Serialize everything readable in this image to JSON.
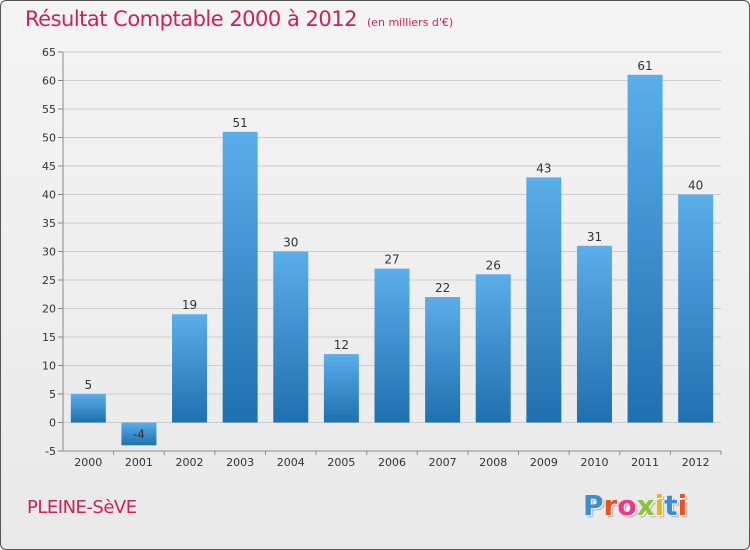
{
  "header": {
    "title": "Résultat Comptable 2000 à 2012",
    "subtitle": "(en milliers d'€)"
  },
  "footer": {
    "commune": "PLEINE-SèVE",
    "logo_text": "Proxiti",
    "logo_colors": [
      "#3a8fd0",
      "#e8541c",
      "#e83a8a",
      "#8bc43a",
      "#f2b21a",
      "#3a8fd0",
      "#e8541c"
    ]
  },
  "colors": {
    "bar_top": "#5aaeea",
    "bar_bottom": "#1f70ae",
    "grid": "#cccccc",
    "axis": "#888888",
    "title": "#cc2255"
  },
  "chart_data": {
    "type": "bar",
    "title": "Résultat Comptable 2000 à 2012",
    "subtitle": "(en milliers d'€)",
    "xlabel": "",
    "ylabel": "",
    "categories": [
      "2000",
      "2001",
      "2002",
      "2003",
      "2004",
      "2005",
      "2006",
      "2007",
      "2008",
      "2009",
      "2010",
      "2011",
      "2012"
    ],
    "values": [
      5,
      -4,
      19,
      51,
      30,
      12,
      27,
      22,
      26,
      43,
      31,
      61,
      40
    ],
    "value_labels": [
      "5",
      "-4",
      "19",
      "51",
      "30",
      "12",
      "27",
      "22",
      "26",
      "43",
      "31",
      "61",
      "40"
    ],
    "ylim": [
      -5,
      65
    ],
    "yticks": [
      "-5",
      "0",
      "5",
      "10",
      "15",
      "20",
      "25",
      "30",
      "35",
      "40",
      "45",
      "50",
      "55",
      "60",
      "65"
    ],
    "grid": true,
    "legend": "none"
  }
}
